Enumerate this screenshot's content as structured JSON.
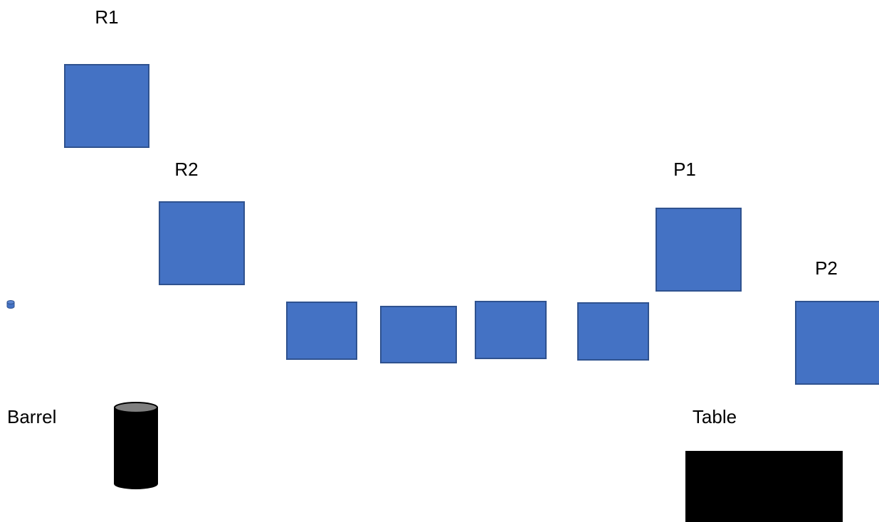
{
  "labels": {
    "r1": "R1",
    "r2": "R2",
    "p1": "P1",
    "p2": "P2",
    "barrel": "Barrel",
    "table": "Table"
  }
}
